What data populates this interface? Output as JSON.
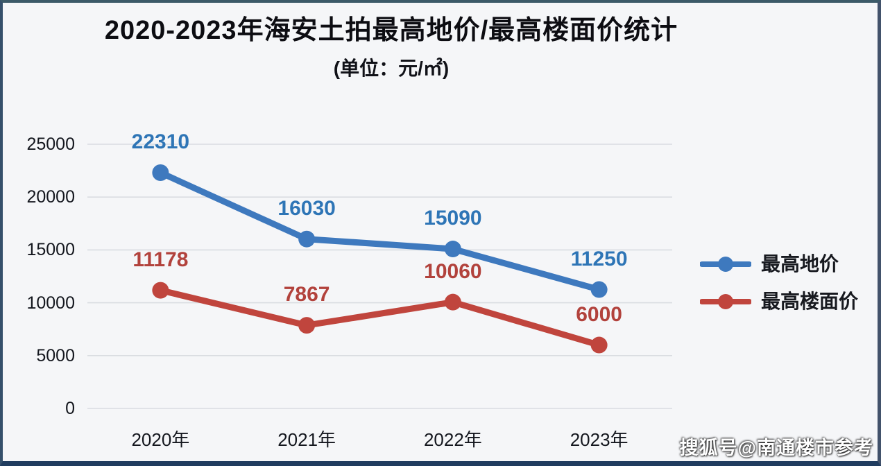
{
  "page": {
    "watermark": "搜狐号@南通楼市参考"
  },
  "chart_data": {
    "type": "line",
    "title": "2020-2023年海安土拍最高地价/最高楼面价统计",
    "subtitle": "(单位：元/㎡)",
    "categories": [
      "2020年",
      "2021年",
      "2022年",
      "2023年"
    ],
    "series": [
      {
        "name": "最高地价",
        "values": [
          22310,
          16030,
          15090,
          11250
        ],
        "color": "#3E79BE",
        "label_color": "#2E75B6"
      },
      {
        "name": "最高楼面价",
        "values": [
          11178,
          7867,
          10060,
          6000
        ],
        "color": "#C0453D",
        "label_color": "#B2423C"
      }
    ],
    "xlabel": "",
    "ylabel": "",
    "ylim": [
      0,
      25000
    ],
    "yticks": [
      0,
      5000,
      10000,
      15000,
      20000,
      25000
    ],
    "grid": true,
    "legend_position": "right",
    "colors": {
      "grid": "#d9dce1",
      "axis_text": "#14171e",
      "background": "#f5f6f8"
    }
  }
}
